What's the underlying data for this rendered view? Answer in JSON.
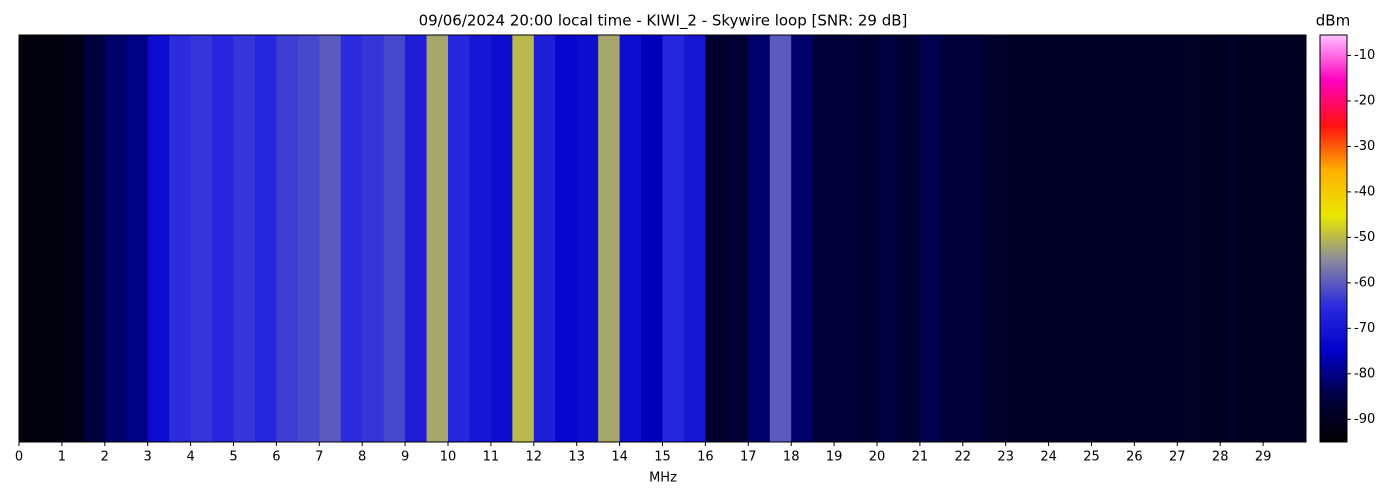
{
  "chart_data": {
    "type": "waterfall",
    "title": "09/06/2024 20:00 local time - KIWI_2 - Skywire loop [SNR: 29 dB]",
    "xlabel": "MHz",
    "colorbar_label": "dBm",
    "bin_width": 0.5,
    "values": [
      -93,
      -93,
      -92,
      -85,
      -82,
      -80,
      -72,
      -65,
      -64,
      -66,
      -64,
      -66,
      -63,
      -62,
      -60,
      -65,
      -64,
      -62,
      -68,
      -52,
      -66,
      -70,
      -72,
      -50,
      -68,
      -74,
      -72,
      -52,
      -72,
      -76,
      -66,
      -70,
      -88,
      -87,
      -82,
      -60,
      -82,
      -86,
      -86,
      -87,
      -85,
      -87,
      -84,
      -86,
      -86,
      -88,
      -89,
      -89,
      -89,
      -89,
      -89,
      -89,
      -89,
      -89,
      -89,
      -90,
      -89,
      -90,
      -90,
      -90
    ],
    "xlim": [
      0,
      30
    ],
    "xticks": [
      0,
      1,
      2,
      3,
      4,
      5,
      6,
      7,
      8,
      9,
      10,
      11,
      12,
      13,
      14,
      15,
      16,
      17,
      18,
      19,
      20,
      21,
      22,
      23,
      24,
      25,
      26,
      27,
      28,
      29
    ],
    "zlim": [
      -95,
      -5.5
    ],
    "zticks": [
      -10,
      -20,
      -30,
      -40,
      -50,
      -60,
      -70,
      -80,
      -90
    ],
    "colormap": [
      "#000000",
      "#000040",
      "#0000c8",
      "#2a2ae0",
      "#8888a0",
      "#e8e800",
      "#ffb000",
      "#ff1010",
      "#ff00c0",
      "#ffc0ff"
    ]
  }
}
